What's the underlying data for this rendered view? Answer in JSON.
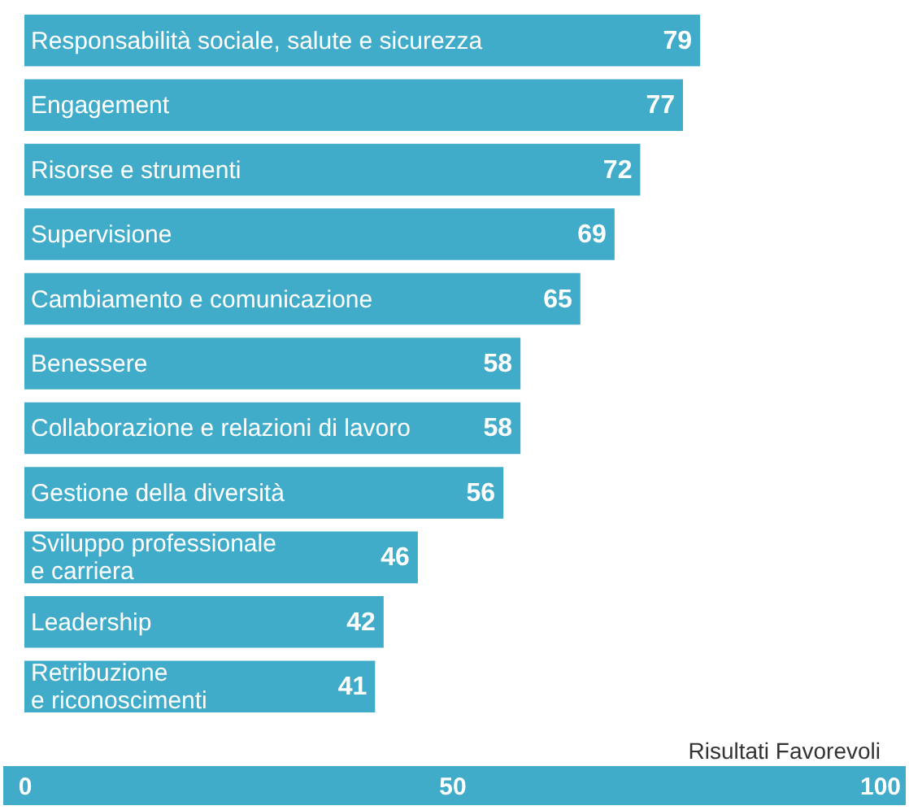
{
  "chart_data": {
    "type": "bar",
    "orientation": "horizontal",
    "categories": [
      "Responsabilità sociale, salute e sicurezza",
      "Engagement",
      "Risorse e strumenti",
      "Supervisione",
      "Cambiamento e comunicazione",
      "Benessere",
      "Collaborazione e relazioni di lavoro",
      "Gestione della diversità",
      "Sviluppo professionale\ne carriera",
      "Leadership",
      "Retribuzione\ne riconoscimenti"
    ],
    "values": [
      79,
      77,
      72,
      69,
      65,
      58,
      58,
      56,
      46,
      42,
      41
    ],
    "color": "#41acc9",
    "xlabel": "Risultati Favorevoli",
    "xlim": [
      0,
      100
    ],
    "xticks": [
      0,
      50,
      100
    ],
    "data_labels": true,
    "grid": false
  }
}
